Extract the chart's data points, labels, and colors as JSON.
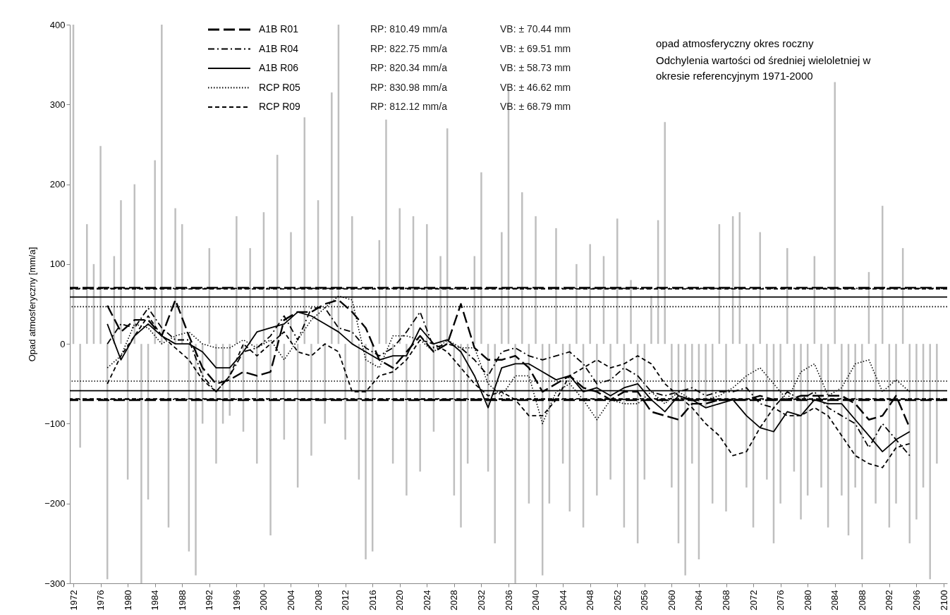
{
  "chart_data": {
    "type": "line",
    "title": "opad atmosferyczny okres roczny",
    "subtitle": "Odchylenia wartości od średniej wieloletniej w okresie referencyjnym 1971-2000",
    "ylabel": "Opad atmosferyczny  [mm/a]",
    "xlim": [
      1972,
      2100
    ],
    "xticks": [
      1972,
      1976,
      1980,
      1984,
      1988,
      1992,
      1996,
      2000,
      2004,
      2008,
      2012,
      2016,
      2020,
      2024,
      2028,
      2032,
      2036,
      2040,
      2044,
      2048,
      2052,
      2056,
      2060,
      2064,
      2068,
      2072,
      2076,
      2080,
      2084,
      2088,
      2092,
      2096,
      2100
    ],
    "ylim": [
      -300,
      400
    ],
    "yticks": [
      -300,
      -200,
      -100,
      0,
      100,
      200,
      300,
      400
    ],
    "legend": "top",
    "annotations": [
      "RP: 810.49 mm/a",
      "VB: ± 70.44 mm",
      "RP: 822.75 mm/a",
      "VB: ± 69.51 mm",
      "RP: 820.34 mm/a",
      "VB: ± 58.73 mm",
      "RP: 830.98 mm/a",
      "VB: ± 46.62 mm",
      "RP: 812.12 mm/a",
      "VB: ± 68.79 mm"
    ],
    "ref_lines": [
      {
        "axis": "y",
        "value": 70.44,
        "color": "#000000",
        "line_style": "longdash"
      },
      {
        "axis": "y",
        "value": -70.44,
        "color": "#000000",
        "line_style": "longdash"
      },
      {
        "axis": "y",
        "value": 69.51,
        "color": "#000000",
        "line_style": "dashdot"
      },
      {
        "axis": "y",
        "value": -69.51,
        "color": "#000000",
        "line_style": "dashdot"
      },
      {
        "axis": "y",
        "value": 58.73,
        "color": "#000000",
        "line_style": "solid"
      },
      {
        "axis": "y",
        "value": -58.73,
        "color": "#000000",
        "line_style": "solid"
      },
      {
        "axis": "y",
        "value": 46.62,
        "color": "#000000",
        "line_style": "dotted"
      },
      {
        "axis": "y",
        "value": -46.62,
        "color": "#000000",
        "line_style": "dotted"
      },
      {
        "axis": "y",
        "value": 68.79,
        "color": "#000000",
        "line_style": "dashed"
      },
      {
        "axis": "y",
        "value": -68.79,
        "color": "#000000",
        "line_style": "dashed"
      }
    ],
    "series": [
      {
        "type": "bar",
        "color": "#bfbfbf",
        "x": [
          1972,
          1973,
          1974,
          1975,
          1976,
          1977,
          1978,
          1979,
          1980,
          1981,
          1982,
          1983,
          1984,
          1985,
          1986,
          1987,
          1988,
          1989,
          1990,
          1991,
          1992,
          1993,
          1994,
          1995,
          1996,
          1997,
          1998,
          1999,
          2000,
          2001,
          2002,
          2003,
          2004,
          2005,
          2006,
          2007,
          2008,
          2009,
          2010,
          2011,
          2012,
          2013,
          2014,
          2015,
          2016,
          2017,
          2018,
          2019,
          2020,
          2021,
          2022,
          2023,
          2024,
          2025,
          2026,
          2027,
          2028,
          2029,
          2030,
          2031,
          2032,
          2033,
          2034,
          2035,
          2036,
          2037,
          2038,
          2039,
          2040,
          2041,
          2042,
          2043,
          2044,
          2045,
          2046,
          2047,
          2048,
          2049,
          2050,
          2051,
          2052,
          2053,
          2054,
          2055,
          2056,
          2057,
          2058,
          2059,
          2060,
          2061,
          2062,
          2063,
          2064,
          2065,
          2066,
          2067,
          2068,
          2069,
          2070,
          2071,
          2072,
          2073,
          2074,
          2075,
          2076,
          2077,
          2078,
          2079,
          2080,
          2081,
          2082,
          2083,
          2084,
          2085,
          2086,
          2087,
          2088,
          2089,
          2090,
          2091,
          2092,
          2093,
          2094,
          2095,
          2096,
          2097,
          2098,
          2099
        ],
        "values": [
          400,
          -130,
          150,
          100,
          248,
          -295,
          110,
          180,
          -170,
          200,
          -300,
          -195,
          230,
          400,
          -230,
          170,
          150,
          -260,
          -290,
          -100,
          120,
          -150,
          -100,
          -90,
          160,
          -110,
          120,
          -150,
          165,
          -240,
          237,
          -120,
          140,
          -180,
          284,
          -140,
          180,
          -100,
          315,
          400,
          -120,
          160,
          -170,
          -270,
          -260,
          130,
          281,
          -150,
          170,
          -190,
          160,
          -160,
          150,
          -110,
          110,
          270,
          -190,
          -230,
          -150,
          110,
          215,
          -160,
          -250,
          140,
          320,
          -300,
          190,
          -200,
          160,
          -290,
          -200,
          145,
          -150,
          -210,
          100,
          -230,
          125,
          -190,
          110,
          -170,
          157,
          -230,
          80,
          -250,
          -170,
          60,
          155,
          278,
          -180,
          -250,
          -290,
          -150,
          -270,
          -80,
          -200,
          150,
          -210,
          160,
          165,
          -180,
          -230,
          140,
          -170,
          -250,
          -200,
          120,
          -160,
          -220,
          -190,
          110,
          -180,
          -230,
          328,
          -190,
          -240,
          -180,
          -270,
          90,
          -200,
          173,
          -230,
          -200,
          120,
          -250,
          -220,
          -180,
          -295,
          -150
        ]
      },
      {
        "name": "A1B R01",
        "color": "#000000",
        "line_style": "longdash",
        "x": [
          1977,
          1979,
          1981,
          1983,
          1985,
          1987,
          1989,
          1991,
          1993,
          1995,
          1997,
          1999,
          2001,
          2003,
          2005,
          2007,
          2009,
          2011,
          2013,
          2015,
          2017,
          2019,
          2021,
          2023,
          2025,
          2027,
          2029,
          2031,
          2033,
          2035,
          2037,
          2039,
          2041,
          2043,
          2045,
          2047,
          2049,
          2051,
          2053,
          2055,
          2057,
          2059,
          2061,
          2063,
          2065,
          2067,
          2069,
          2071,
          2073,
          2075,
          2077,
          2079,
          2081,
          2083,
          2085,
          2087,
          2089,
          2091,
          2093,
          2095
        ],
        "values": [
          48,
          15,
          30,
          30,
          10,
          55,
          10,
          -30,
          -50,
          -45,
          -35,
          -40,
          -35,
          30,
          40,
          40,
          50,
          55,
          40,
          20,
          -20,
          -30,
          -10,
          10,
          -10,
          0,
          50,
          -5,
          -20,
          -20,
          -15,
          -30,
          -60,
          -50,
          -40,
          -55,
          -60,
          -70,
          -60,
          -60,
          -85,
          -90,
          -95,
          -75,
          -75,
          -70,
          -70,
          -70,
          -65,
          -70,
          -70,
          -65,
          -65,
          -65,
          -65,
          -75,
          -95,
          -90,
          -65,
          -105
        ]
      },
      {
        "name": "A1B R04",
        "color": "#000000",
        "line_style": "dashdot",
        "x": [
          1977,
          1979,
          1981,
          1983,
          1985,
          1987,
          1989,
          1991,
          1993,
          1995,
          1997,
          1999,
          2001,
          2003,
          2005,
          2007,
          2009,
          2011,
          2013,
          2015,
          2017,
          2019,
          2021,
          2023,
          2025,
          2027,
          2029,
          2031,
          2033,
          2035,
          2037,
          2039,
          2041,
          2043,
          2045,
          2047,
          2049,
          2051,
          2053,
          2055,
          2057,
          2059,
          2061,
          2063,
          2065,
          2067,
          2069,
          2071,
          2073,
          2075,
          2077,
          2079,
          2081,
          2083,
          2085,
          2087,
          2089,
          2091,
          2093,
          2095
        ],
        "values": [
          0,
          25,
          20,
          45,
          20,
          5,
          5,
          -40,
          -60,
          -40,
          -10,
          -5,
          10,
          35,
          5,
          45,
          45,
          20,
          15,
          -5,
          -15,
          -5,
          15,
          40,
          -5,
          0,
          -5,
          -20,
          -40,
          -10,
          -5,
          -15,
          -20,
          -15,
          -10,
          -25,
          -50,
          -45,
          -30,
          -40,
          -60,
          -65,
          -60,
          -55,
          -65,
          -60,
          -60,
          -55,
          -75,
          -80,
          -60,
          -70,
          -60,
          -80,
          -90,
          -100,
          -130,
          -100,
          -120,
          -140
        ]
      },
      {
        "name": "A1B R06",
        "color": "#000000",
        "line_style": "solid",
        "x": [
          1977,
          1979,
          1981,
          1983,
          1985,
          1987,
          1989,
          1991,
          1993,
          1995,
          1997,
          1999,
          2001,
          2003,
          2005,
          2007,
          2009,
          2011,
          2013,
          2015,
          2017,
          2019,
          2021,
          2023,
          2025,
          2027,
          2029,
          2031,
          2033,
          2035,
          2037,
          2039,
          2041,
          2043,
          2045,
          2047,
          2049,
          2051,
          2053,
          2055,
          2057,
          2059,
          2061,
          2063,
          2065,
          2067,
          2069,
          2071,
          2073,
          2075,
          2077,
          2079,
          2081,
          2083,
          2085,
          2087,
          2089,
          2091,
          2093,
          2095
        ],
        "values": [
          25,
          -20,
          10,
          25,
          10,
          0,
          0,
          -10,
          -30,
          -30,
          -10,
          15,
          20,
          25,
          40,
          35,
          25,
          15,
          0,
          -10,
          -20,
          -15,
          -15,
          20,
          0,
          5,
          -10,
          -40,
          -80,
          -30,
          -25,
          -25,
          -35,
          -45,
          -40,
          -60,
          -55,
          -65,
          -55,
          -50,
          -70,
          -85,
          -65,
          -70,
          -80,
          -75,
          -70,
          -90,
          -105,
          -110,
          -85,
          -90,
          -70,
          -75,
          -75,
          -95,
          -115,
          -135,
          -120,
          -110
        ]
      },
      {
        "name": "RCP R05",
        "color": "#000000",
        "line_style": "dotted",
        "x": [
          1977,
          1979,
          1981,
          1983,
          1985,
          1987,
          1989,
          1991,
          1993,
          1995,
          1997,
          1999,
          2001,
          2003,
          2005,
          2007,
          2009,
          2011,
          2013,
          2015,
          2017,
          2019,
          2021,
          2023,
          2025,
          2027,
          2029,
          2031,
          2033,
          2035,
          2037,
          2039,
          2041,
          2043,
          2045,
          2047,
          2049,
          2051,
          2053,
          2055,
          2057,
          2059,
          2061,
          2063,
          2065,
          2067,
          2069,
          2071,
          2073,
          2075,
          2077,
          2079,
          2081,
          2083,
          2085,
          2087,
          2089,
          2091,
          2093,
          2095
        ],
        "values": [
          -30,
          -15,
          25,
          20,
          0,
          10,
          15,
          0,
          -5,
          -5,
          5,
          -5,
          5,
          -20,
          5,
          30,
          45,
          60,
          55,
          -20,
          -30,
          10,
          10,
          5,
          -10,
          5,
          -5,
          -5,
          -50,
          -65,
          -40,
          -40,
          -100,
          -60,
          -50,
          -70,
          -95,
          -70,
          -75,
          -75,
          -60,
          -75,
          -60,
          -70,
          -70,
          -65,
          -55,
          -40,
          -30,
          -50,
          -70,
          -35,
          -25,
          -65,
          -55,
          -25,
          -20,
          -60,
          -45,
          -60
        ]
      },
      {
        "name": "RCP R09",
        "color": "#000000",
        "line_style": "dashed",
        "x": [
          1977,
          1979,
          1981,
          1983,
          1985,
          1987,
          1989,
          1991,
          1993,
          1995,
          1997,
          1999,
          2001,
          2003,
          2005,
          2007,
          2009,
          2011,
          2013,
          2015,
          2017,
          2019,
          2021,
          2023,
          2025,
          2027,
          2029,
          2031,
          2033,
          2035,
          2037,
          2039,
          2041,
          2043,
          2045,
          2047,
          2049,
          2051,
          2053,
          2055,
          2057,
          2059,
          2061,
          2063,
          2065,
          2067,
          2069,
          2071,
          2073,
          2075,
          2077,
          2079,
          2081,
          2083,
          2085,
          2087,
          2089,
          2091,
          2093,
          2095
        ],
        "values": [
          -50,
          -15,
          10,
          35,
          10,
          -5,
          -20,
          -45,
          -60,
          -40,
          0,
          -15,
          0,
          15,
          -10,
          -15,
          0,
          -10,
          -60,
          -60,
          -40,
          -35,
          -20,
          5,
          0,
          -10,
          -30,
          -50,
          -65,
          -60,
          -70,
          -90,
          -90,
          -70,
          -40,
          -30,
          -20,
          -30,
          -25,
          -15,
          -25,
          -50,
          -65,
          -80,
          -100,
          -115,
          -140,
          -135,
          -105,
          -80,
          -90,
          -90,
          -80,
          -90,
          -115,
          -140,
          -150,
          -155,
          -130,
          -125
        ]
      }
    ]
  }
}
